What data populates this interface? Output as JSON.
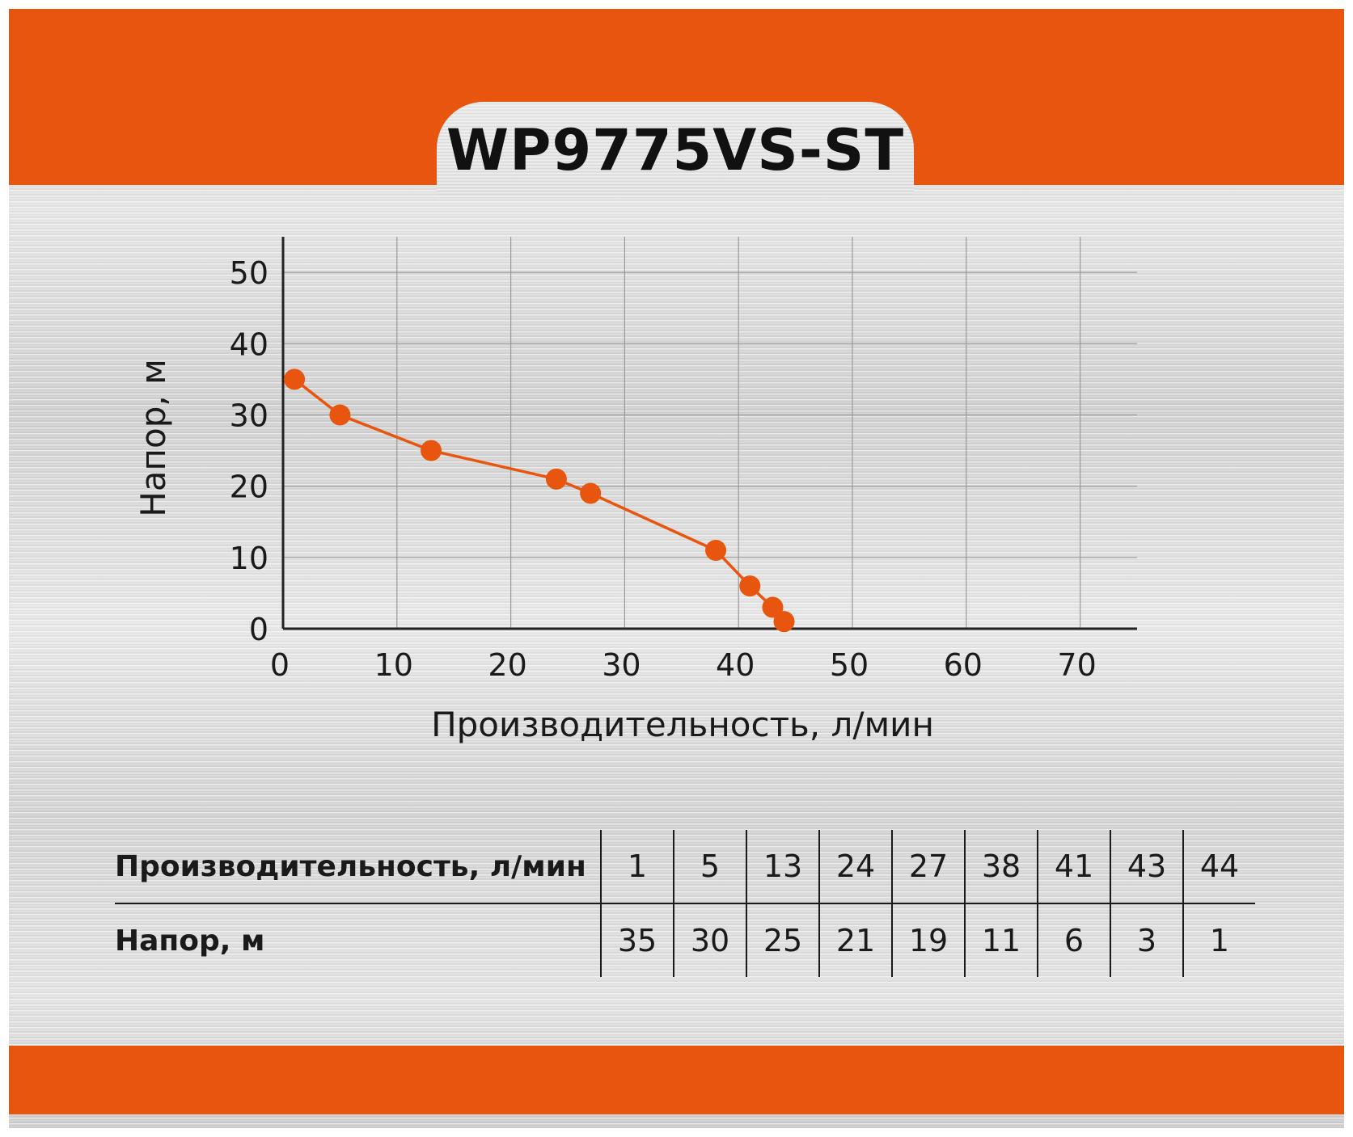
{
  "title": "WP9775VS-ST",
  "colors": {
    "accent": "#E8550F",
    "axis": "#222222",
    "grid": "#9a9a9a",
    "text": "#1a1a1a"
  },
  "chart_data": {
    "type": "line",
    "title": "",
    "xlabel": "Производительность, л/мин",
    "ylabel": "Напор, м",
    "xlim": [
      0,
      75
    ],
    "ylim": [
      0,
      55
    ],
    "x_ticks": [
      0,
      10,
      20,
      30,
      40,
      50,
      60,
      70
    ],
    "y_ticks": [
      0,
      10,
      20,
      30,
      40,
      50
    ],
    "grid": true,
    "series": [
      {
        "x": [
          1,
          5,
          13,
          24,
          27,
          38,
          41,
          43,
          44
        ],
        "y": [
          35,
          30,
          25,
          21,
          19,
          11,
          6,
          3,
          1
        ],
        "color": "#E8550F",
        "markers": true
      }
    ]
  },
  "table": {
    "row_labels": [
      "Производительность, л/мин",
      "Напор, м"
    ],
    "flow_values": [
      "1",
      "5",
      "13",
      "24",
      "27",
      "38",
      "41",
      "43",
      "44"
    ],
    "head_values": [
      "35",
      "30",
      "25",
      "21",
      "19",
      "11",
      "6",
      "3",
      "1"
    ]
  }
}
